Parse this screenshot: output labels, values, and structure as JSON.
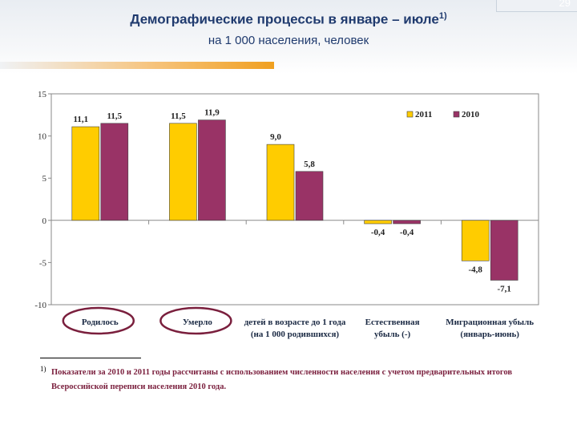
{
  "header": {
    "title": "Демографические процессы в январе – июле",
    "title_sup": "1)",
    "subtitle": "на 1 000 населения, человек",
    "deco_number": "29"
  },
  "colors": {
    "s2011": "#ffcc00",
    "s2010": "#993366",
    "accent": "#f0a020",
    "title": "#1f3a6e"
  },
  "chart_data": {
    "type": "bar",
    "categories": [
      [
        "Родилось"
      ],
      [
        "Умерло"
      ],
      [
        "детей в возрасте до 1 года",
        "(на 1 000 родившихся)"
      ],
      [
        "Естественная",
        "убыль (-)"
      ],
      [
        "Миграционная убыль",
        "(январь-июнь)"
      ]
    ],
    "circled_categories": [
      0,
      1
    ],
    "series": [
      {
        "name": "2011",
        "values": [
          11.1,
          11.5,
          9.0,
          -0.4,
          -4.8
        ],
        "labels": [
          "11,1",
          "11,5",
          "9,0",
          "-0,4",
          "-4,8"
        ]
      },
      {
        "name": "2010",
        "values": [
          11.5,
          11.9,
          5.8,
          -0.4,
          -7.1
        ],
        "labels": [
          "11,5",
          "11,9",
          "5,8",
          "-0,4",
          "-7,1"
        ]
      }
    ],
    "ylim": [
      -10,
      15
    ],
    "yticks": [
      "15",
      "10",
      "5",
      "0",
      "-5",
      "-10"
    ],
    "legend_position": "top-right",
    "grid": false
  },
  "footnote": {
    "mark": "1)",
    "text": "Показатели за 2010 и 2011 годы рассчитаны с использованием численности населения с учетом предварительных итогов\nВсероссийской переписи населения 2010 года."
  }
}
